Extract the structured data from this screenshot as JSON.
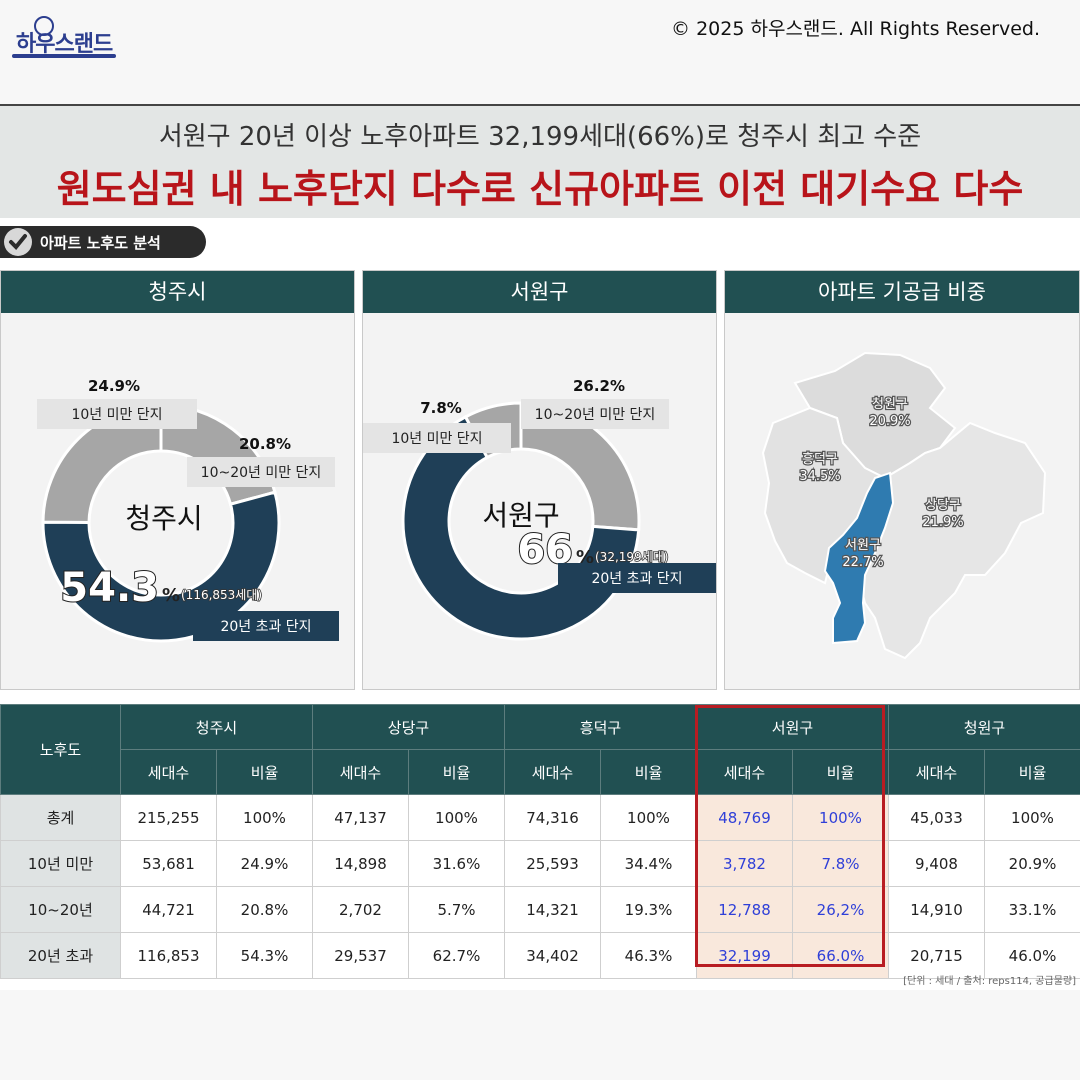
{
  "header": {
    "logo_text": "하우스랜드",
    "copyright": "© 2025 하우스랜드. All Rights Reserved."
  },
  "headline": {
    "line1": "서원구 20년 이상 노후아파트 32,199세대(66%)로 청주시 최고 수준",
    "line2": "원도심권 내 노후단지 다수로 신규아파트 이전 대기수요 다수"
  },
  "section_badge": "아파트 노후도 분석",
  "colors": {
    "dark": "#1f3f57",
    "gray": "#a6a6a6",
    "header_bg": "#215052",
    "accent_red": "#b8141a",
    "highlight_blue": "#2f7bb0"
  },
  "chart_data": [
    {
      "type": "pie",
      "panel_title": "청주시",
      "center_label": "청주시",
      "slices": [
        {
          "label": "10년 미만 단지",
          "value": 24.9,
          "display": "24.9%"
        },
        {
          "label": "10~20년 미만 단지",
          "value": 20.8,
          "display": "20.8%"
        },
        {
          "label": "20년 초과 단지",
          "value": 54.3,
          "display": "54.3",
          "unit": "%",
          "note": "(116,853세대)"
        }
      ]
    },
    {
      "type": "pie",
      "panel_title": "서원구",
      "center_label": "서원구",
      "slices": [
        {
          "label": "10년 미만 단지",
          "value": 7.8,
          "display": "7.8%"
        },
        {
          "label": "10~20년 미만 단지",
          "value": 26.2,
          "display": "26.2%"
        },
        {
          "label": "20년 초과 단지",
          "value": 66.0,
          "display": "66",
          "unit": "%",
          "note": "(32,199세대)"
        }
      ]
    }
  ],
  "map": {
    "panel_title": "아파트 기공급 비중",
    "regions": [
      {
        "name": "청원구",
        "share": "20.9%"
      },
      {
        "name": "흥덕구",
        "share": "34.5%"
      },
      {
        "name": "상당구",
        "share": "21.9%"
      },
      {
        "name": "서원구",
        "share": "22.7%"
      }
    ]
  },
  "table": {
    "corner": "노후도",
    "groups": [
      "청주시",
      "상당구",
      "흥덕구",
      "서원구",
      "청원구"
    ],
    "subheaders": [
      "세대수",
      "비율"
    ],
    "rows": [
      {
        "label": "총계",
        "cells": [
          "215,255",
          "100%",
          "47,137",
          "100%",
          "74,316",
          "100%",
          "48,769",
          "100%",
          "45,033",
          "100%"
        ]
      },
      {
        "label": "10년 미만",
        "cells": [
          "53,681",
          "24.9%",
          "14,898",
          "31.6%",
          "25,593",
          "34.4%",
          "3,782",
          "7.8%",
          "9,408",
          "20.9%"
        ]
      },
      {
        "label": "10~20년",
        "cells": [
          "44,721",
          "20.8%",
          "2,702",
          "5.7%",
          "14,321",
          "19.3%",
          "12,788",
          "26,2%",
          "14,910",
          "33.1%"
        ]
      },
      {
        "label": "20년 초과",
        "cells": [
          "116,853",
          "54.3%",
          "29,537",
          "62.7%",
          "34,402",
          "46.3%",
          "32,199",
          "66.0%",
          "20,715",
          "46.0%"
        ]
      }
    ],
    "source": "[단위 : 세대 / 출처: reps114, 공급물량]"
  }
}
